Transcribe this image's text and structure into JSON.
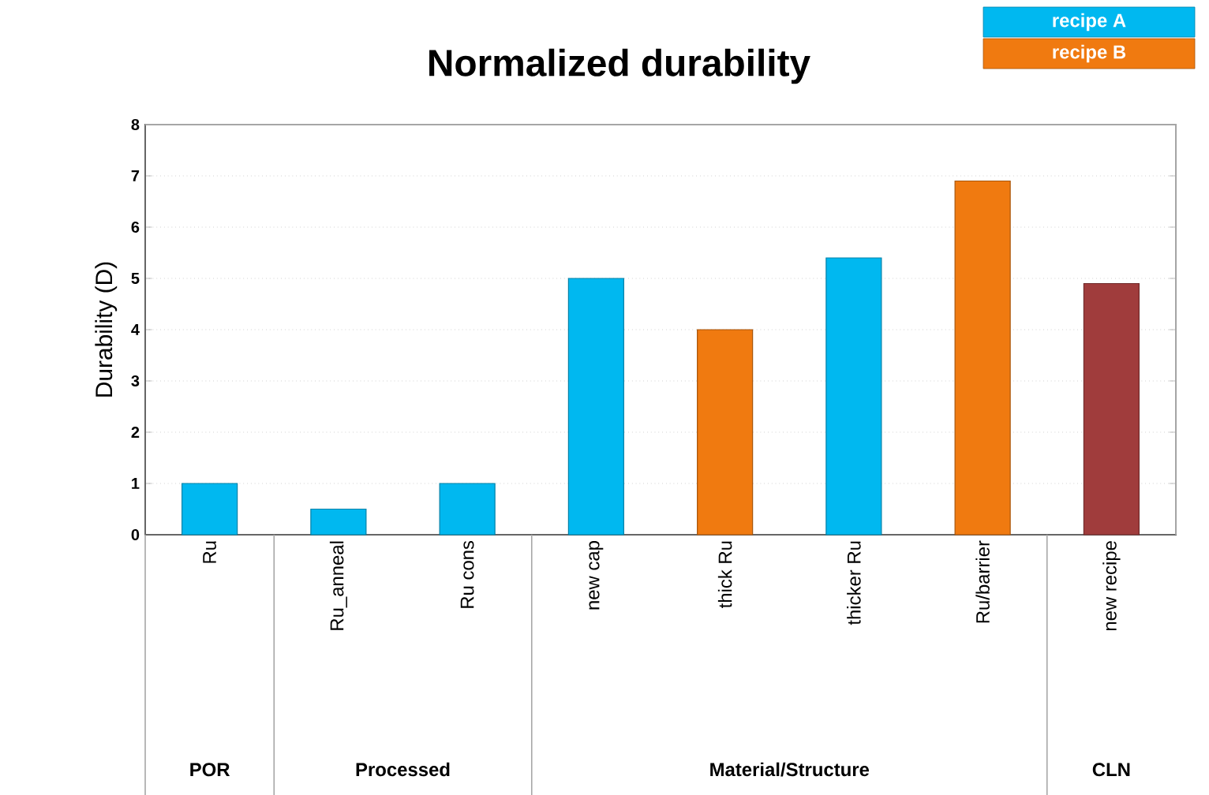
{
  "chart_data": {
    "type": "bar",
    "title": "Normalized durability",
    "ylabel": "Durability (D)",
    "categories": [
      "Ru",
      "Ru_anneal",
      "Ru cons",
      "new cap",
      "thick Ru",
      "thicker Ru",
      "Ru/barrier",
      "new recipe"
    ],
    "series": [
      {
        "name": "recipe A",
        "color": "#00b8f0",
        "values": [
          1,
          0.5,
          1,
          5,
          null,
          5.4,
          null,
          null
        ]
      },
      {
        "name": "recipe B",
        "color": "#f07a10",
        "values": [
          null,
          null,
          null,
          null,
          4,
          null,
          6.9,
          null
        ]
      },
      {
        "color": "#a03c3c",
        "values": [
          null,
          null,
          null,
          null,
          null,
          null,
          null,
          4.9
        ]
      }
    ],
    "ylim": [
      0,
      8
    ],
    "yticks": [
      0,
      1,
      2,
      3,
      4,
      5,
      6,
      7,
      8
    ],
    "grid": "y",
    "legend": "top right",
    "annotations": [
      "POR",
      "Processed",
      "Material/Structure",
      "CLN"
    ]
  }
}
